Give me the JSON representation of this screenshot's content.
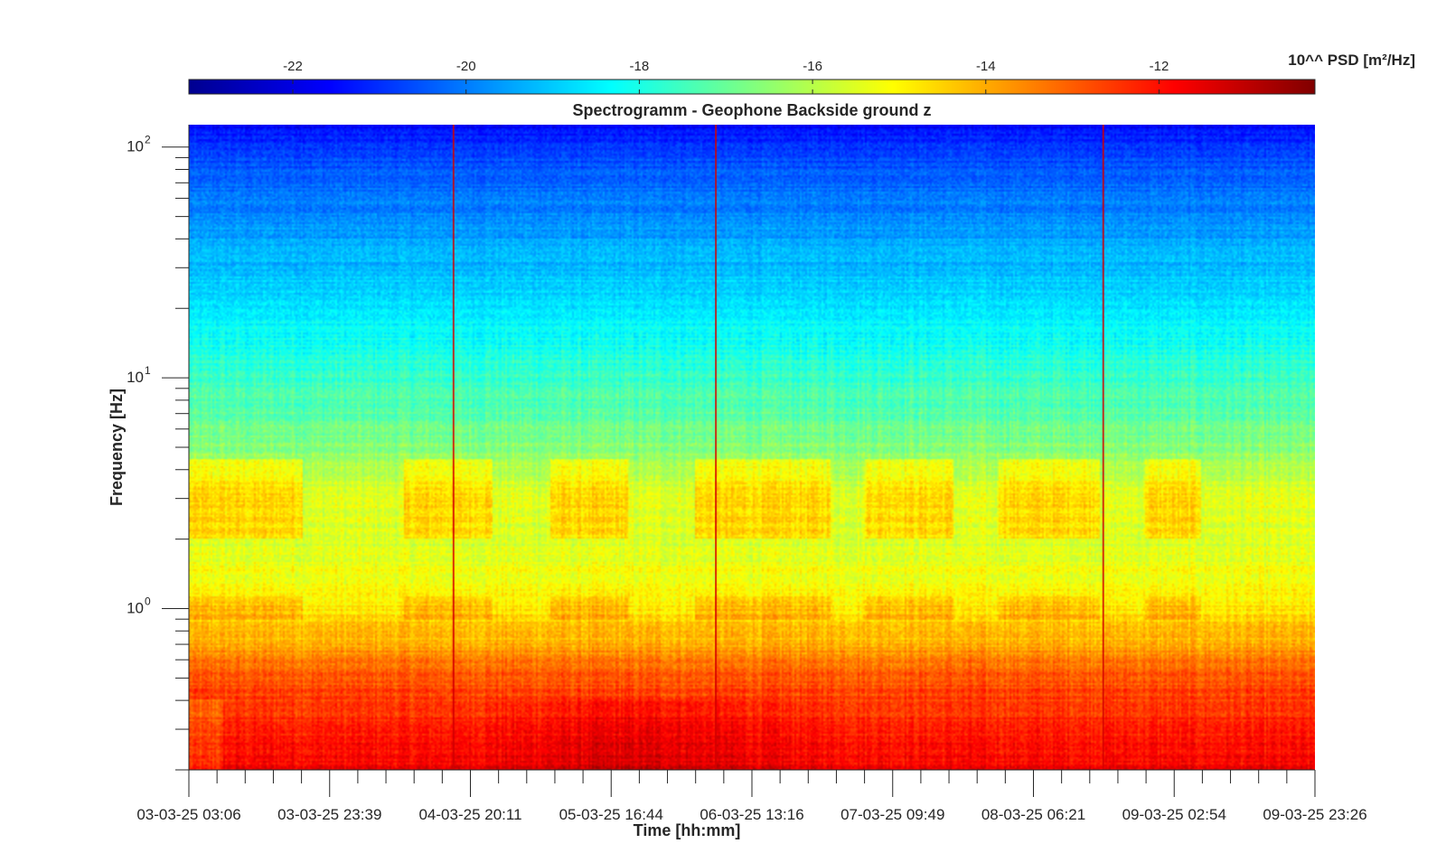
{
  "chart_data": {
    "type": "heatmap",
    "title": "Spectrogramm - Geophone Backside ground z",
    "xlabel": "Time [hh:mm]",
    "ylabel": "Frequency [Hz]",
    "yscale": "log",
    "ylim": [
      0.2,
      125
    ],
    "y_tick_values": [
      1,
      10,
      100
    ],
    "y_tick_labels": [
      "10",
      "10",
      "10"
    ],
    "y_tick_exponents": [
      "0",
      "1",
      "2"
    ],
    "x_tick_labels": [
      "03-03-25 03:06",
      "03-03-25 23:39",
      "04-03-25 20:11",
      "05-03-25 16:44",
      "06-03-25 13:16",
      "07-03-25 09:49",
      "08-03-25 06:21",
      "09-03-25 02:54",
      "09-03-25 23:26"
    ],
    "colorbar": {
      "label": "10^^ PSD [m²/Hz]",
      "range": [
        -23.2,
        -10.2
      ],
      "ticks": [
        -22,
        -20,
        -18,
        -16,
        -14,
        -12
      ],
      "tick_labels": [
        "-22",
        "-20",
        "-18",
        "-16",
        "-14",
        "-12"
      ],
      "colormap": [
        "#00008f",
        "#0000ff",
        "#00ffff",
        "#ffff00",
        "#ff0000",
        "#800000"
      ]
    },
    "profile_psd_by_frequency": [
      {
        "freq": 0.2,
        "log10_psd": -11.7
      },
      {
        "freq": 0.3,
        "log10_psd": -12.2
      },
      {
        "freq": 0.5,
        "log10_psd": -12.9
      },
      {
        "freq": 0.75,
        "log10_psd": -14.2
      },
      {
        "freq": 1.0,
        "log10_psd": -14.8
      },
      {
        "freq": 2.0,
        "log10_psd": -15.6
      },
      {
        "freq": 3.0,
        "log10_psd": -15.4
      },
      {
        "freq": 5.0,
        "log10_psd": -16.6
      },
      {
        "freq": 10.0,
        "log10_psd": -17.6
      },
      {
        "freq": 20.0,
        "log10_psd": -18.6
      },
      {
        "freq": 50.0,
        "log10_psd": -19.8
      },
      {
        "freq": 100.0,
        "log10_psd": -20.8
      },
      {
        "freq": 125.0,
        "log10_psd": -21.6
      }
    ],
    "transient_events_x_fraction": [
      0.235,
      0.468,
      0.812
    ],
    "elevated_bands_x_fraction": [
      [
        0.0,
        0.1
      ],
      [
        0.19,
        0.27
      ],
      [
        0.32,
        0.39
      ],
      [
        0.45,
        0.57
      ],
      [
        0.6,
        0.68
      ],
      [
        0.72,
        0.81
      ],
      [
        0.85,
        0.9
      ]
    ]
  }
}
